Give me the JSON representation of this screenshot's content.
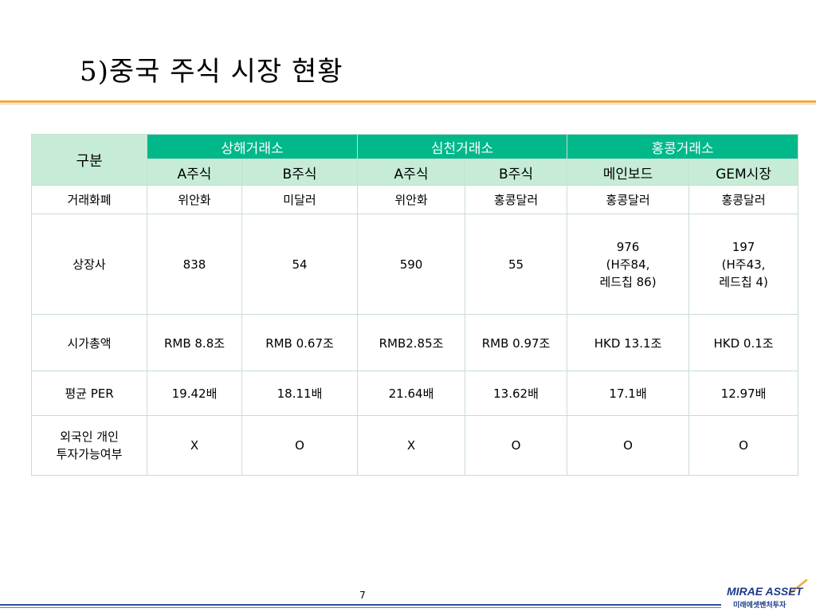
{
  "slide": {
    "title": "5)중국 주식 시장 현황",
    "page_number": "7"
  },
  "logo": {
    "main": "MIRAE ASSET",
    "sub": "미래에셋벤처투자"
  },
  "colors": {
    "accent_rule": "#f0a840",
    "header_fill": "#00b88a",
    "subheader_fill": "#c6ecd7",
    "bottom_rule": "#3050a0"
  },
  "table": {
    "corner": "구분",
    "exchanges": [
      "상해거래소",
      "심천거래소",
      "홍콩거래소"
    ],
    "subheaders": [
      "A주식",
      "B주식",
      "A주식",
      "B주식",
      "메인보드",
      "GEM시장"
    ],
    "rows": [
      {
        "label": "거래화폐",
        "cells": [
          "위안화",
          "미달러",
          "위안화",
          "홍콩달러",
          "홍콩달러",
          "홍콩달러"
        ]
      },
      {
        "label": "상장사",
        "cells": [
          "838",
          "54",
          "590",
          "55",
          "976\n(H주84,\n레드칩 86)",
          "197\n(H주43,\n레드칩 4)"
        ]
      },
      {
        "label": "시가총액",
        "cells": [
          "RMB 8.8조",
          "RMB 0.67조",
          "RMB2.85조",
          "RMB 0.97조",
          "HKD 13.1조",
          "HKD 0.1조"
        ]
      },
      {
        "label": "평균 PER",
        "cells": [
          "19.42배",
          "18.11배",
          "21.64배",
          "13.62배",
          "17.1배",
          "12.97배"
        ]
      },
      {
        "label": "외국인 개인\n투자가능여부",
        "cells": [
          "X",
          "O",
          "X",
          "O",
          "O",
          "O"
        ]
      }
    ]
  }
}
